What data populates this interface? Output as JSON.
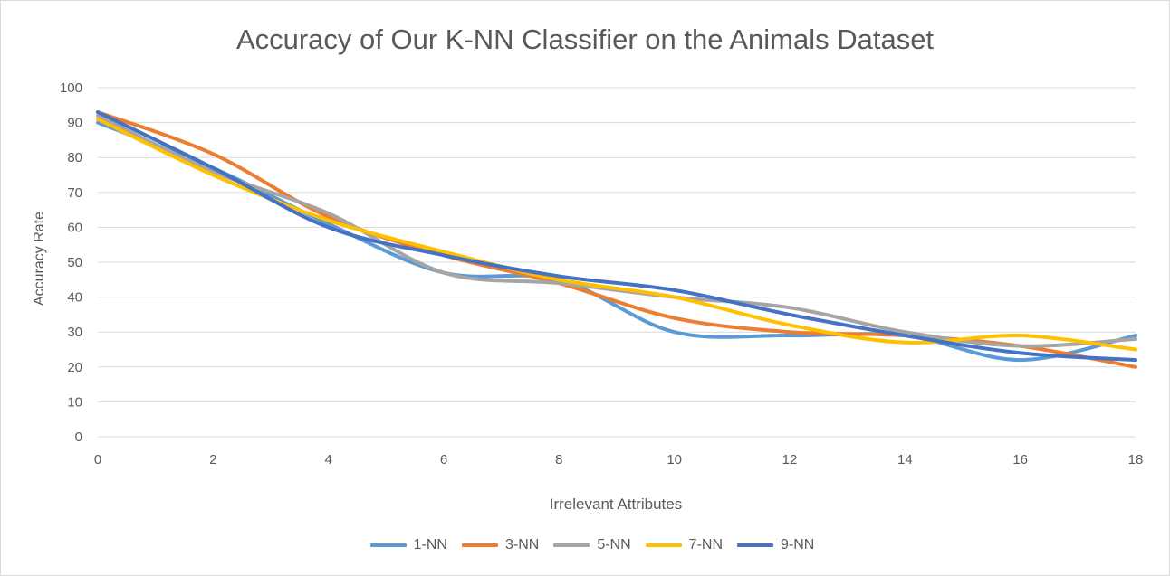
{
  "chart_data": {
    "type": "line",
    "title": "Accuracy of Our K-NN Classifier on the Animals Dataset",
    "xlabel": "Irrelevant Attributes",
    "ylabel": "Accuracy Rate",
    "x": [
      0,
      2,
      4,
      6,
      8,
      10,
      12,
      14,
      16,
      18
    ],
    "xlim": [
      0,
      18
    ],
    "ylim": [
      0,
      100
    ],
    "xticks": [
      "0",
      "2",
      "4",
      "6",
      "8",
      "10",
      "12",
      "14",
      "16",
      "18"
    ],
    "yticks": [
      "0",
      "10",
      "20",
      "30",
      "40",
      "50",
      "60",
      "70",
      "80",
      "90",
      "100"
    ],
    "grid": "horizontal",
    "legend_position": "bottom",
    "smooth": true,
    "series": [
      {
        "name": "1-NN",
        "color": "#5B9BD5",
        "values": [
          90,
          77,
          61,
          47,
          45,
          30,
          29,
          29,
          22,
          29
        ]
      },
      {
        "name": "3-NN",
        "color": "#ED7D31",
        "values": [
          93,
          81,
          63,
          52,
          44,
          34,
          30,
          29,
          26,
          20
        ]
      },
      {
        "name": "5-NN",
        "color": "#A5A5A5",
        "values": [
          92,
          76,
          64,
          47,
          44,
          40,
          37,
          30,
          26,
          28
        ]
      },
      {
        "name": "7-NN",
        "color": "#FFC000",
        "values": [
          91,
          75,
          62,
          53,
          45,
          40,
          32,
          27,
          29,
          25
        ]
      },
      {
        "name": "9-NN",
        "color": "#4472C4",
        "values": [
          93,
          77,
          60,
          52,
          46,
          42,
          35,
          29,
          24,
          22
        ]
      }
    ]
  }
}
